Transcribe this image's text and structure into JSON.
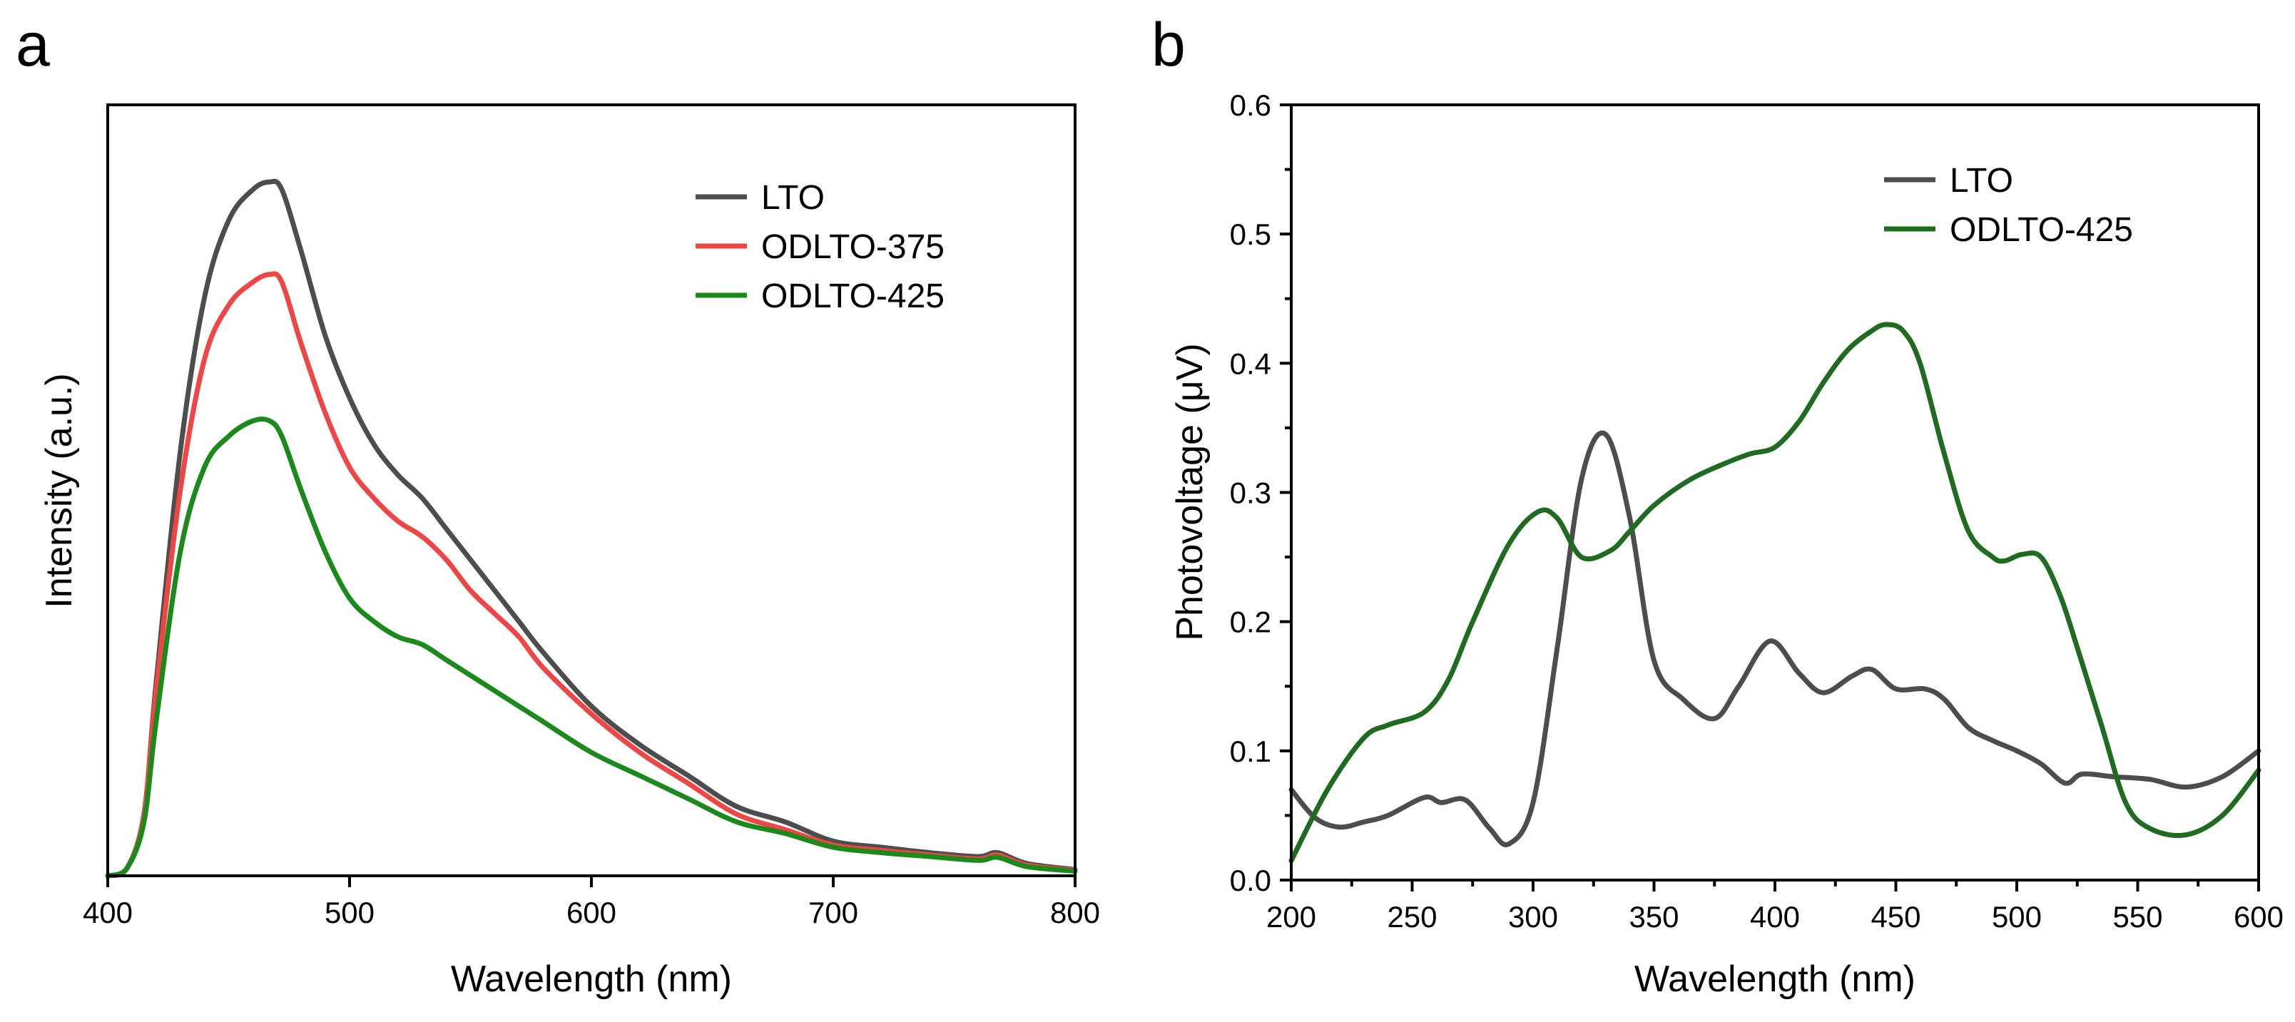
{
  "chart_data": [
    {
      "type": "line",
      "panel_label": "a",
      "title": "",
      "xlabel": "Wavelength (nm)",
      "ylabel": "Intensity (a.u.)",
      "xlim": [
        400,
        800
      ],
      "ylim": [
        0,
        1.0
      ],
      "xticks": [
        400,
        500,
        600,
        700,
        800
      ],
      "x_tick_labels": [
        "400",
        "500",
        "600",
        "700",
        "800"
      ],
      "y_tick_labels": [],
      "legend_position": "top-right",
      "series": [
        {
          "name": "LTO",
          "color": "#4d4d4d",
          "x": [
            400,
            408,
            415,
            420,
            430,
            440,
            450,
            460,
            467,
            472,
            480,
            490,
            500,
            510,
            520,
            530,
            540,
            550,
            560,
            570,
            580,
            600,
            620,
            640,
            660,
            680,
            700,
            720,
            740,
            760,
            768,
            780,
            800
          ],
          "y": [
            0.0,
            0.01,
            0.08,
            0.25,
            0.55,
            0.75,
            0.85,
            0.89,
            0.9,
            0.89,
            0.81,
            0.7,
            0.62,
            0.56,
            0.52,
            0.49,
            0.45,
            0.41,
            0.37,
            0.33,
            0.29,
            0.22,
            0.17,
            0.13,
            0.09,
            0.07,
            0.045,
            0.037,
            0.03,
            0.025,
            0.03,
            0.016,
            0.008
          ]
        },
        {
          "name": "ODLTO-375",
          "color": "#ef4545",
          "x": [
            400,
            408,
            415,
            420,
            430,
            440,
            450,
            460,
            467,
            472,
            480,
            490,
            500,
            510,
            520,
            530,
            540,
            550,
            560,
            570,
            580,
            600,
            620,
            640,
            660,
            680,
            700,
            720,
            740,
            760,
            768,
            780,
            800
          ],
          "y": [
            0.0,
            0.01,
            0.08,
            0.24,
            0.5,
            0.67,
            0.74,
            0.77,
            0.78,
            0.77,
            0.69,
            0.6,
            0.53,
            0.49,
            0.46,
            0.44,
            0.41,
            0.37,
            0.34,
            0.31,
            0.27,
            0.21,
            0.16,
            0.12,
            0.08,
            0.06,
            0.04,
            0.033,
            0.027,
            0.022,
            0.027,
            0.014,
            0.007
          ]
        },
        {
          "name": "ODLTO-425",
          "color": "#1a8a1a",
          "x": [
            400,
            408,
            415,
            420,
            430,
            440,
            450,
            460,
            467,
            472,
            480,
            490,
            500,
            510,
            520,
            530,
            540,
            550,
            560,
            570,
            580,
            600,
            620,
            640,
            660,
            680,
            700,
            720,
            740,
            760,
            768,
            780,
            800
          ],
          "y": [
            0.0,
            0.01,
            0.07,
            0.2,
            0.42,
            0.53,
            0.57,
            0.59,
            0.59,
            0.57,
            0.5,
            0.42,
            0.36,
            0.33,
            0.31,
            0.3,
            0.28,
            0.26,
            0.24,
            0.22,
            0.2,
            0.16,
            0.13,
            0.1,
            0.07,
            0.055,
            0.037,
            0.03,
            0.025,
            0.02,
            0.024,
            0.012,
            0.006
          ]
        }
      ]
    },
    {
      "type": "line",
      "panel_label": "b",
      "title": "",
      "xlabel": "Wavelength (nm)",
      "ylabel": "Photovoltage (μV)",
      "xlim": [
        200,
        600
      ],
      "ylim": [
        0.0,
        0.6
      ],
      "xticks": [
        200,
        250,
        300,
        350,
        400,
        450,
        500,
        550,
        600
      ],
      "x_tick_labels": [
        "200",
        "250",
        "300",
        "350",
        "400",
        "450",
        "500",
        "550",
        "600"
      ],
      "yticks": [
        0.0,
        0.1,
        0.2,
        0.3,
        0.4,
        0.5,
        0.6
      ],
      "y_tick_labels": [
        "0.0",
        "0.1",
        "0.2",
        "0.3",
        "0.4",
        "0.5",
        "0.6"
      ],
      "legend_position": "top-right",
      "series": [
        {
          "name": "LTO",
          "color": "#4d4d4d",
          "x": [
            200,
            210,
            220,
            230,
            240,
            255,
            262,
            272,
            282,
            290,
            300,
            310,
            320,
            330,
            340,
            350,
            362,
            375,
            385,
            398,
            410,
            420,
            432,
            440,
            450,
            462,
            470,
            480,
            490,
            500,
            510,
            520,
            527,
            540,
            555,
            570,
            585,
            600
          ],
          "y": [
            0.07,
            0.048,
            0.041,
            0.045,
            0.05,
            0.064,
            0.06,
            0.062,
            0.04,
            0.028,
            0.06,
            0.18,
            0.31,
            0.345,
            0.28,
            0.17,
            0.14,
            0.125,
            0.15,
            0.185,
            0.16,
            0.145,
            0.158,
            0.163,
            0.148,
            0.148,
            0.14,
            0.118,
            0.108,
            0.1,
            0.09,
            0.075,
            0.082,
            0.08,
            0.078,
            0.072,
            0.08,
            0.1
          ]
        },
        {
          "name": "ODLTO-425",
          "color": "#1f6b1f",
          "x": [
            200,
            215,
            230,
            240,
            255,
            265,
            275,
            290,
            302,
            310,
            320,
            332,
            340,
            350,
            365,
            380,
            390,
            400,
            410,
            420,
            430,
            440,
            446,
            453,
            460,
            470,
            480,
            490,
            495,
            502,
            510,
            518,
            525,
            535,
            545,
            555,
            570,
            585,
            600
          ],
          "y": [
            0.015,
            0.07,
            0.11,
            0.12,
            0.13,
            0.155,
            0.2,
            0.26,
            0.285,
            0.28,
            0.25,
            0.255,
            0.27,
            0.29,
            0.31,
            0.323,
            0.33,
            0.335,
            0.355,
            0.385,
            0.41,
            0.425,
            0.43,
            0.425,
            0.4,
            0.33,
            0.27,
            0.25,
            0.247,
            0.252,
            0.25,
            0.22,
            0.18,
            0.12,
            0.06,
            0.04,
            0.035,
            0.05,
            0.085
          ]
        }
      ]
    }
  ]
}
